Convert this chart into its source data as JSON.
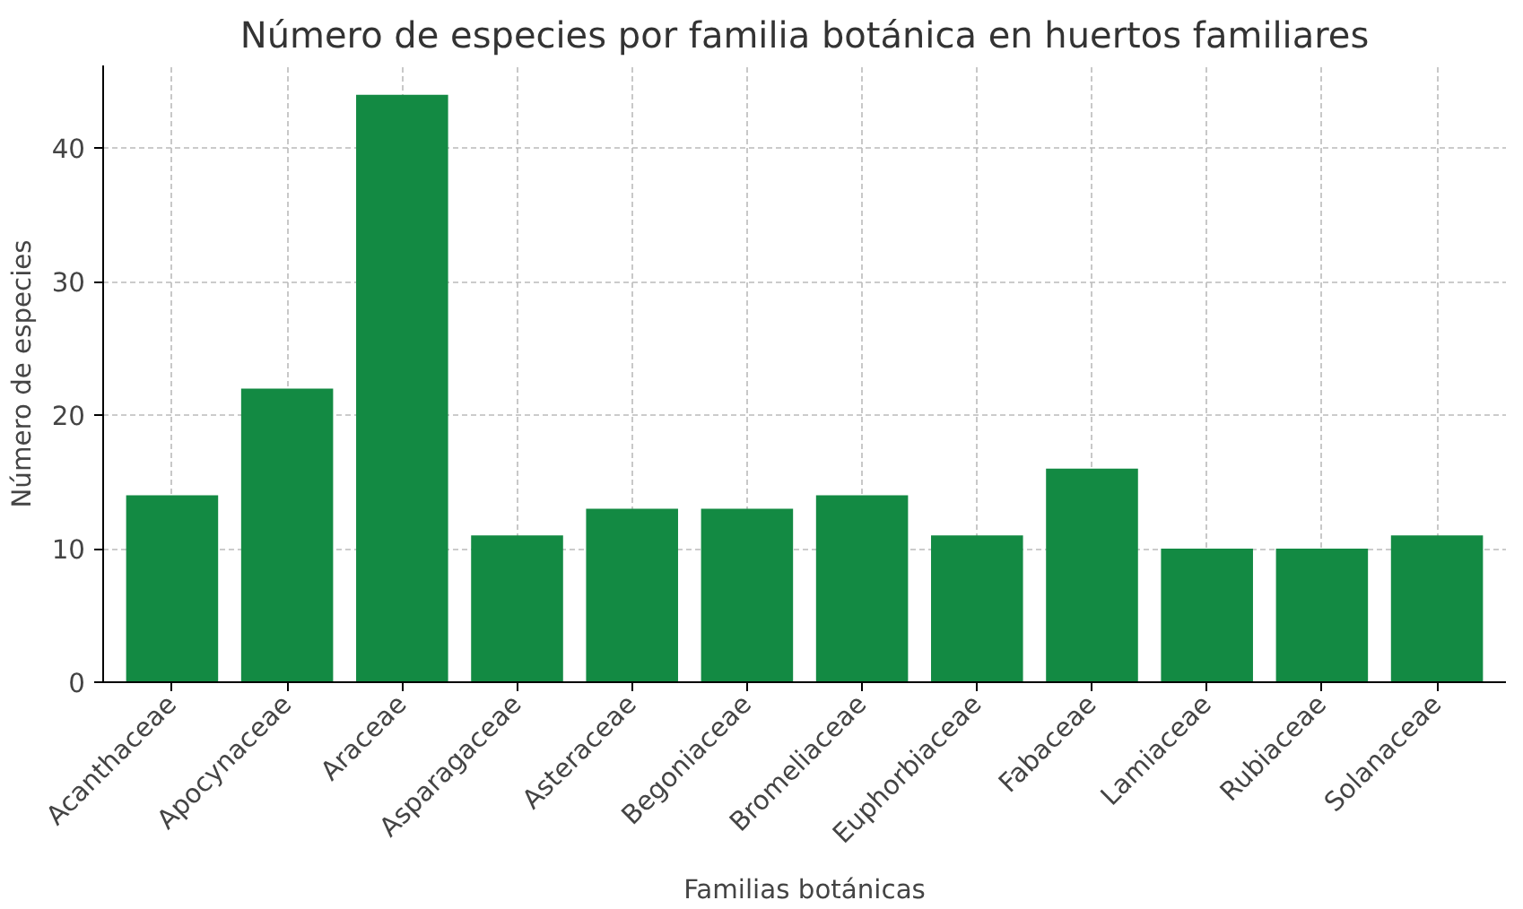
{
  "chart_data": {
    "type": "bar",
    "title": "Número de especies por familia botánica en huertos familiares",
    "xlabel": "Familias botánicas",
    "ylabel": "Número de especies",
    "categories": [
      "Acanthaceae",
      "Apocynaceae",
      "Araceae",
      "Asparagaceae",
      "Asteraceae",
      "Begoniaceae",
      "Bromeliaceae",
      "Euphorbiaceae",
      "Fabaceae",
      "Lamiaceae",
      "Rubiaceae",
      "Solanaceae"
    ],
    "values": [
      14,
      22,
      44,
      11,
      13,
      13,
      14,
      11,
      16,
      10,
      10,
      11
    ],
    "color": "#138a43",
    "ylim": [
      0,
      46.2
    ],
    "yticks": [
      0,
      10,
      20,
      30,
      40
    ],
    "grid": true
  }
}
